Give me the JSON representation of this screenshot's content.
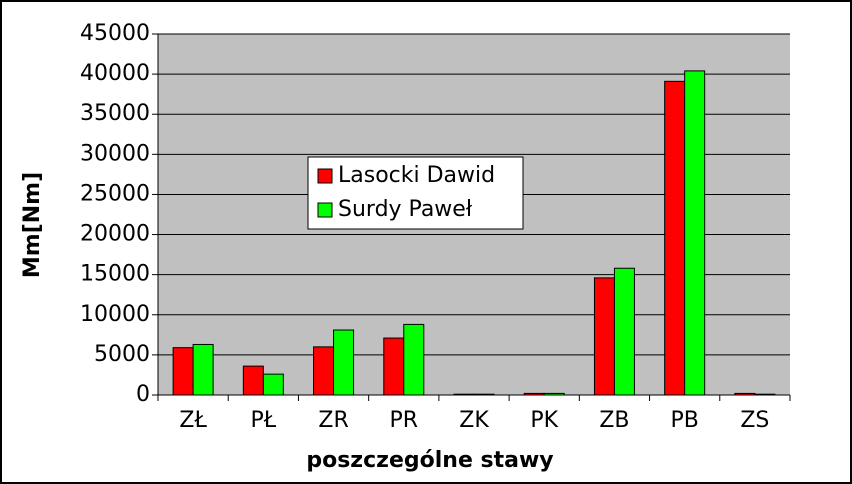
{
  "chart_data": {
    "type": "bar",
    "categories": [
      "ZŁ",
      "PŁ",
      "ZR",
      "PR",
      "ZK",
      "PK",
      "ZB",
      "PB",
      "ZS"
    ],
    "series": [
      {
        "name": "Lasocki Dawid",
        "color": "#ff0000",
        "values": [
          5900,
          3600,
          6000,
          7100,
          100,
          200,
          14600,
          39100,
          200
        ]
      },
      {
        "name": "Surdy Paweł",
        "color": "#00ff00",
        "values": [
          6300,
          2600,
          8100,
          8800,
          100,
          200,
          15800,
          40400,
          100
        ]
      }
    ],
    "ylabel": "Mm[Nm]",
    "xlabel": "poszczególne stawy",
    "ylim": [
      0,
      45000
    ],
    "yticks": [
      0,
      5000,
      10000,
      15000,
      20000,
      25000,
      30000,
      35000,
      40000,
      45000
    ],
    "grid": true,
    "legend": "center-left"
  }
}
